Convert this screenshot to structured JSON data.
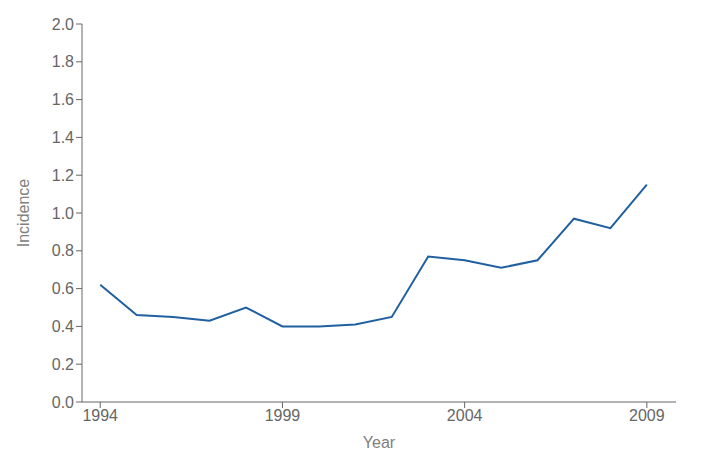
{
  "chart_data": {
    "type": "line",
    "xlabel": "Year",
    "ylabel": "Incidence",
    "x": [
      1994,
      1995,
      1996,
      1997,
      1998,
      1999,
      2000,
      2001,
      2002,
      2003,
      2004,
      2005,
      2006,
      2007,
      2008,
      2009
    ],
    "values": [
      0.62,
      0.46,
      0.45,
      0.43,
      0.5,
      0.4,
      0.4,
      0.41,
      0.45,
      0.77,
      0.75,
      0.71,
      0.75,
      0.97,
      0.92,
      1.15
    ],
    "color": "#2060a0",
    "marker": "none",
    "grid": false,
    "xlim": [
      1993.5,
      2009.8
    ],
    "ylim": [
      0.0,
      2.0
    ],
    "xticks": [
      1994,
      1999,
      2004,
      2009
    ],
    "yticks": [
      {
        "value": 0.0,
        "label": "0.0"
      },
      0.2,
      0.4,
      0.6,
      0.8,
      {
        "value": 1.0,
        "label": "1.0"
      },
      1.2,
      1.4,
      1.6,
      1.8,
      {
        "value": 2.0,
        "label": "2.0"
      }
    ]
  }
}
